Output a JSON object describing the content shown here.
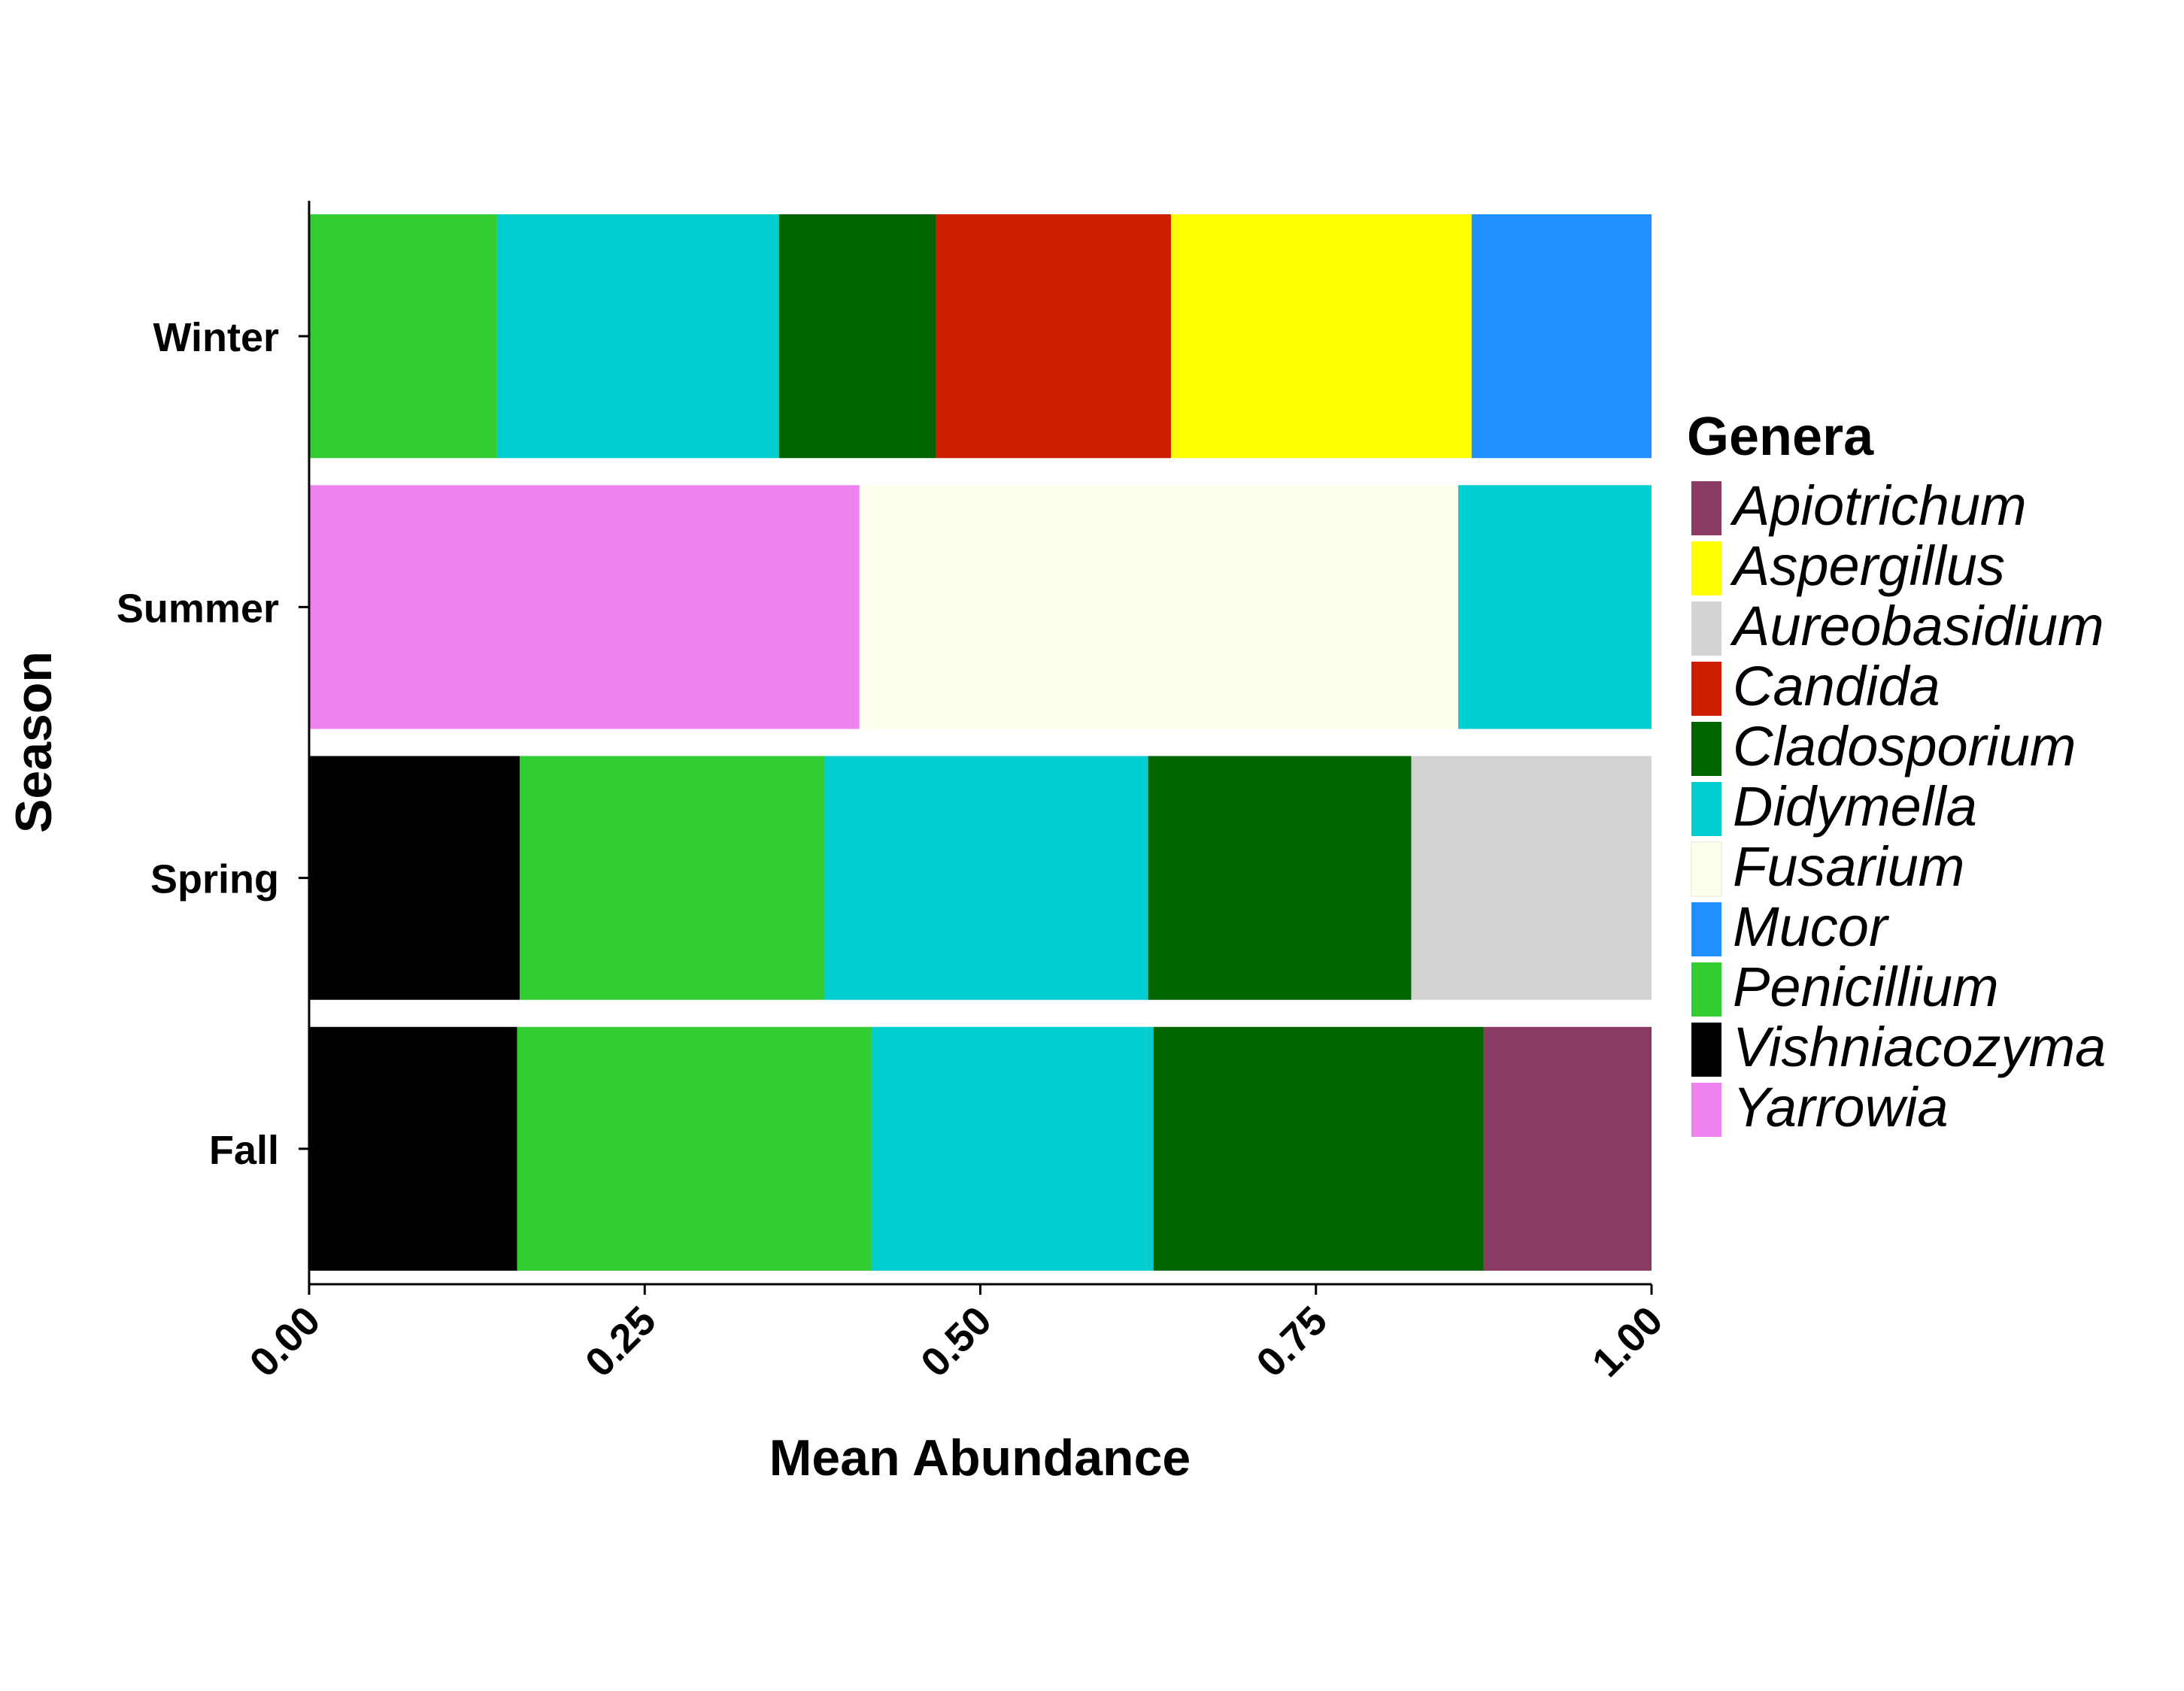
{
  "chart_data": {
    "type": "bar",
    "orientation": "horizontal",
    "stacked": true,
    "xlabel": "Mean Abundance",
    "ylabel": "Season",
    "xlim": [
      0,
      1
    ],
    "x_ticks": [
      "0.00",
      "0.25",
      "0.50",
      "0.75",
      "1.00"
    ],
    "x_tick_values": [
      0,
      0.25,
      0.5,
      0.75,
      1.0
    ],
    "grid": false,
    "categories": [
      "Winter",
      "Summer",
      "Spring",
      "Fall"
    ],
    "legend": {
      "title": "Genera",
      "placement": "right",
      "entries": [
        {
          "name": "Apiotrichum",
          "color": "#8B3A62"
        },
        {
          "name": "Aspergillus",
          "color": "#FFFF00"
        },
        {
          "name": "Aureobasidium",
          "color": "#D3D3D3"
        },
        {
          "name": "Candida",
          "color": "#CD1F00"
        },
        {
          "name": "Cladosporium",
          "color": "#006400"
        },
        {
          "name": "Didymella",
          "color": "#00CED1"
        },
        {
          "name": "Fusarium",
          "color": "#FFFFF0"
        },
        {
          "name": "Mucor",
          "color": "#1E90FF"
        },
        {
          "name": "Penicillium",
          "color": "#32CD32"
        },
        {
          "name": "Vishniacozyma",
          "color": "#000000"
        },
        {
          "name": "Yarrowia",
          "color": "#EE82EE"
        }
      ]
    },
    "bars": [
      {
        "category": "Winter",
        "segments": [
          {
            "genus": "Penicillium",
            "value": 0.14
          },
          {
            "genus": "Didymella",
            "value": 0.21
          },
          {
            "genus": "Cladosporium",
            "value": 0.117
          },
          {
            "genus": "Candida",
            "value": 0.175
          },
          {
            "genus": "Aspergillus",
            "value": 0.224
          },
          {
            "genus": "Mucor",
            "value": 0.134
          }
        ]
      },
      {
        "category": "Summer",
        "segments": [
          {
            "genus": "Yarrowia",
            "value": 0.41
          },
          {
            "genus": "Fusarium",
            "value": 0.446
          },
          {
            "genus": "Didymella",
            "value": 0.144
          }
        ]
      },
      {
        "category": "Spring",
        "segments": [
          {
            "genus": "Vishniacozyma",
            "value": 0.157
          },
          {
            "genus": "Penicillium",
            "value": 0.227
          },
          {
            "genus": "Didymella",
            "value": 0.241
          },
          {
            "genus": "Cladosporium",
            "value": 0.196
          },
          {
            "genus": "Aureobasidium",
            "value": 0.179
          }
        ]
      },
      {
        "category": "Fall",
        "segments": [
          {
            "genus": "Vishniacozyma",
            "value": 0.155
          },
          {
            "genus": "Penicillium",
            "value": 0.264
          },
          {
            "genus": "Didymella",
            "value": 0.21
          },
          {
            "genus": "Cladosporium",
            "value": 0.246
          },
          {
            "genus": "Apiotrichum",
            "value": 0.125
          }
        ]
      }
    ]
  }
}
